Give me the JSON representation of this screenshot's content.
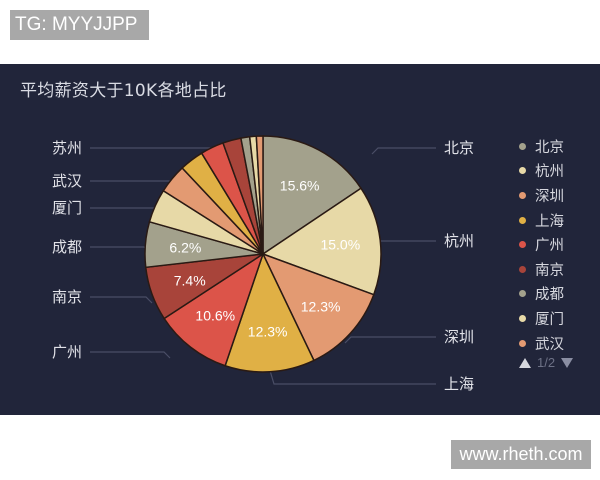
{
  "watermarks": {
    "top": "TG: MYYJJPP",
    "bottom": "www.rheth.com"
  },
  "panel": {
    "background": "#21253a"
  },
  "chart_data": {
    "type": "pie",
    "title": "平均薪资大于10K各地占比",
    "slices": [
      {
        "name": "北京",
        "value": 15.6,
        "label": "15.6%",
        "color": "#a3a18c"
      },
      {
        "name": "杭州",
        "value": 15.0,
        "label": "15.0%",
        "color": "#e7d9a7"
      },
      {
        "name": "深圳",
        "value": 12.3,
        "label": "12.3%",
        "color": "#e39a72"
      },
      {
        "name": "上海",
        "value": 12.3,
        "label": "12.3%",
        "color": "#e0b045"
      },
      {
        "name": "广州",
        "value": 10.6,
        "label": "10.6%",
        "color": "#dc5449"
      },
      {
        "name": "南京",
        "value": 7.4,
        "label": "7.4%",
        "color": "#a8443a"
      },
      {
        "name": "成都",
        "value": 6.2,
        "label": "6.2%",
        "color": "#a3a18c"
      },
      {
        "name": "厦门",
        "value": 4.6,
        "label": "",
        "color": "#e7d9a7"
      },
      {
        "name": "武汉",
        "value": 4.0,
        "label": "",
        "color": "#e39a72"
      },
      {
        "name": "",
        "value": 3.3,
        "label": "",
        "color": "#e0b045"
      },
      {
        "name": "苏州",
        "value": 3.2,
        "label": "",
        "color": "#dc5449"
      },
      {
        "name": "",
        "value": 2.5,
        "label": "",
        "color": "#a8443a"
      },
      {
        "name": "",
        "value": 1.2,
        "label": "",
        "color": "#a3a18c"
      },
      {
        "name": "",
        "value": 0.9,
        "label": "",
        "color": "#e7d9a7"
      },
      {
        "name": "",
        "value": 0.9,
        "label": "",
        "color": "#e39a72"
      }
    ],
    "outer_labels": [
      {
        "text": "北京",
        "side": "right"
      },
      {
        "text": "杭州",
        "side": "right"
      },
      {
        "text": "深圳",
        "side": "right"
      },
      {
        "text": "上海",
        "side": "right"
      },
      {
        "text": "苏州",
        "side": "left"
      },
      {
        "text": "武汉",
        "side": "left"
      },
      {
        "text": "厦门",
        "side": "left"
      },
      {
        "text": "成都",
        "side": "left"
      },
      {
        "text": "南京",
        "side": "left"
      },
      {
        "text": "广州",
        "side": "left"
      }
    ],
    "legend": {
      "position": "right",
      "items": [
        {
          "name": "北京",
          "color": "#a3a18c"
        },
        {
          "name": "杭州",
          "color": "#e7d9a7"
        },
        {
          "name": "深圳",
          "color": "#e39a72"
        },
        {
          "name": "上海",
          "color": "#e0b045"
        },
        {
          "name": "广州",
          "color": "#dc5449"
        },
        {
          "name": "南京",
          "color": "#a8443a"
        },
        {
          "name": "成都",
          "color": "#a3a18c"
        },
        {
          "name": "厦门",
          "color": "#e7d9a7"
        },
        {
          "name": "武汉",
          "color": "#e39a72"
        }
      ],
      "page": "1/2"
    }
  }
}
